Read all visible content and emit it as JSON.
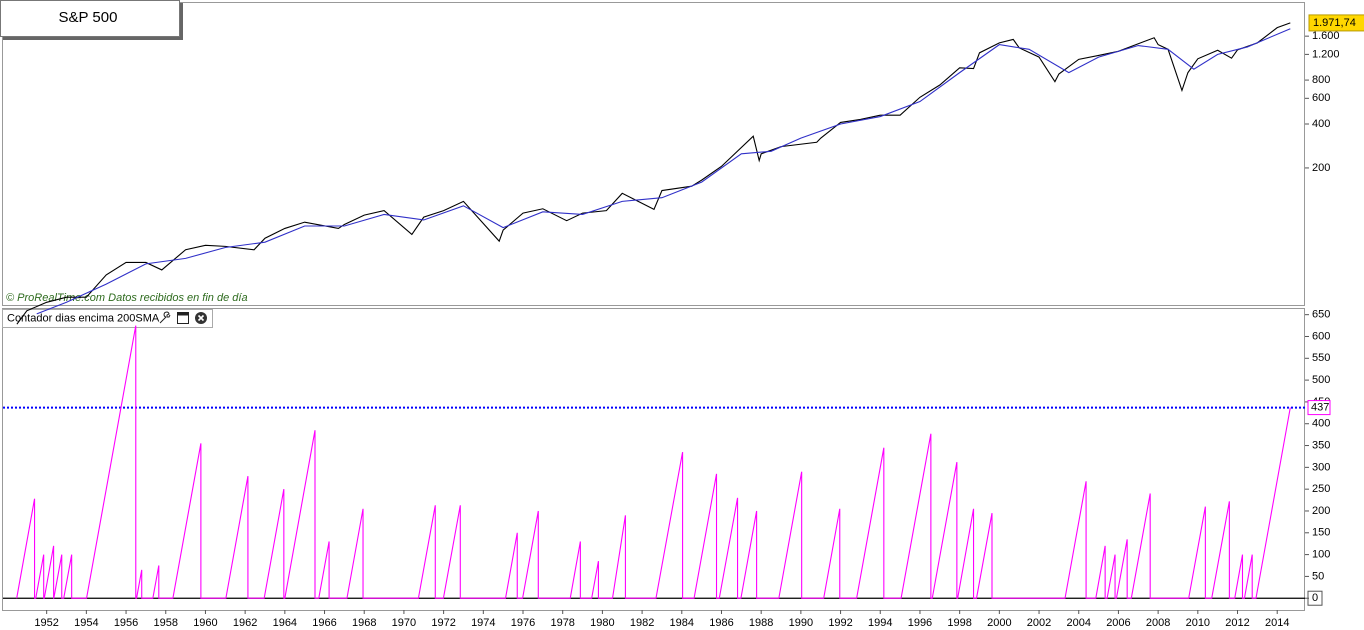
{
  "chart_data": [
    {
      "type": "line",
      "title": "S&P 500",
      "annotation": "© ProRealTime.com  Datos recibidos en fin de día",
      "log_scale": true,
      "xlim": [
        1949.8,
        2015.4
      ],
      "ylim": [
        23,
        2700
      ],
      "yticks": [
        200,
        400,
        600,
        800,
        {
          "value": 1200,
          "label": "1.200"
        },
        {
          "value": 1600,
          "label": "1.600"
        }
      ],
      "last_value": {
        "value": 1971.74,
        "label": "1.971,74"
      },
      "series": [
        {
          "color": "#000000",
          "x": [
            1950.5,
            1951,
            1952,
            1953,
            1954,
            1955,
            1956,
            1957,
            1957.8,
            1959,
            1960,
            1961,
            1962.45,
            1963,
            1964,
            1965,
            1966.7,
            1967,
            1968,
            1969,
            1970.4,
            1971,
            1972,
            1973,
            1974.8,
            1975,
            1976,
            1977,
            1978.2,
            1979,
            1980.2,
            1981,
            1982.6,
            1983,
            1984.5,
            1985,
            1986,
            1987.6,
            1987.9,
            1988,
            1989,
            1990.8,
            1991,
            1992,
            1993,
            1994,
            1995,
            1996,
            1997,
            1998,
            1998.7,
            1999,
            2000,
            2000.7,
            2001,
            2002,
            2002.8,
            2003,
            2004,
            2005,
            2006,
            2007,
            2007.8,
            2008,
            2008.5,
            2009.2,
            2009.5,
            2010,
            2011,
            2011.7,
            2012,
            2013,
            2014,
            2014.66
          ],
          "values": [
            17,
            21,
            24,
            26,
            26,
            37,
            45,
            45,
            40,
            55,
            59,
            58,
            55,
            66,
            77,
            85,
            77,
            82,
            95,
            102,
            70,
            92,
            102,
            118,
            63,
            75,
            98,
            105,
            87,
            98,
            102,
            134,
            104,
            140,
            150,
            165,
            205,
            330,
            225,
            250,
            280,
            300,
            320,
            410,
            430,
            460,
            460,
            610,
            740,
            970,
            960,
            1230,
            1440,
            1520,
            1330,
            1150,
            780,
            880,
            1110,
            1180,
            1260,
            1420,
            1560,
            1400,
            1300,
            680,
            900,
            1120,
            1280,
            1130,
            1290,
            1440,
            1830,
            1971.74
          ]
        },
        {
          "color": "#3030c8",
          "x": [
            1951.5,
            1953,
            1955,
            1957,
            1959,
            1961,
            1963,
            1965,
            1967,
            1969,
            1971,
            1973,
            1975,
            1977,
            1979,
            1981,
            1983,
            1985,
            1987,
            1988.5,
            1990,
            1992,
            1994,
            1996,
            1998,
            2000,
            2001.5,
            2003.5,
            2005,
            2007,
            2008.5,
            2009.8,
            2011,
            2012.5,
            2014.66
          ],
          "values": [
            20,
            24,
            32,
            44,
            48,
            57,
            62,
            80,
            80,
            96,
            88,
            110,
            78,
            100,
            96,
            118,
            125,
            160,
            250,
            260,
            320,
            400,
            450,
            570,
            900,
            1400,
            1300,
            900,
            1150,
            1380,
            1300,
            950,
            1200,
            1350,
            1800
          ]
        }
      ]
    },
    {
      "type": "line",
      "title": "Contador dias encima 200SMA",
      "xlim": [
        1949.8,
        2015.4
      ],
      "ylim": [
        -27,
        663
      ],
      "xticks": [
        1952,
        1954,
        1956,
        1958,
        1960,
        1962,
        1964,
        1966,
        1968,
        1970,
        1972,
        1974,
        1976,
        1978,
        1980,
        1982,
        1984,
        1986,
        1988,
        1990,
        1992,
        1994,
        1996,
        1998,
        2000,
        2002,
        2004,
        2006,
        2008,
        2010,
        2012,
        2014
      ],
      "yticks": [
        0,
        50,
        100,
        150,
        200,
        250,
        300,
        350,
        400,
        450,
        500,
        550,
        600,
        650
      ],
      "hline": {
        "value": 437,
        "color": "#0000ff"
      },
      "series": [
        {
          "color": "#ff00ff",
          "x": [
            1950.49,
            1951.39,
            1951.39,
            1951.45,
            1951.85,
            1951.85,
            1951.88,
            1952.35,
            1952.35,
            1952.36,
            1952.76,
            1952.76,
            1952.86,
            1953.26,
            1953.26,
            1954.01,
            1956.49,
            1956.49,
            1956.53,
            1956.79,
            1956.79,
            1957.35,
            1957.65,
            1957.65,
            1958.36,
            1959.77,
            1959.77,
            1961.03,
            1962.14,
            1962.14,
            1962.96,
            1963.95,
            1963.95,
            1964.0,
            1965.52,
            1965.52,
            1965.71,
            1966.23,
            1966.23,
            1967.13,
            1967.94,
            1967.94,
            1970.73,
            1971.58,
            1971.58,
            1971.99,
            1972.84,
            1972.84,
            1975.12,
            1975.71,
            1975.71,
            1975.98,
            1976.77,
            1976.77,
            1978.38,
            1978.89,
            1978.89,
            1979.46,
            1979.8,
            1979.8,
            1980.51,
            1981.16,
            1981.16,
            1982.7,
            1984.04,
            1984.04,
            1984.62,
            1985.75,
            1985.75,
            1985.89,
            1986.81,
            1986.81,
            1986.98,
            1987.77,
            1987.77,
            1988.89,
            1990.04,
            1990.04,
            1991.15,
            1991.96,
            1991.96,
            1992.81,
            1994.18,
            1994.18,
            1995.05,
            1996.55,
            1996.55,
            1996.62,
            1997.86,
            1997.86,
            1997.9,
            1998.7,
            1998.7,
            1998.85,
            1999.63,
            1999.63,
            2003.31,
            2004.37,
            2004.37,
            2004.86,
            2005.33,
            2005.33,
            2005.43,
            2005.83,
            2005.83,
            2005.9,
            2006.44,
            2006.44,
            2006.65,
            2007.6,
            2007.6,
            2009.54,
            2010.38,
            2010.38,
            2010.7,
            2011.59,
            2011.59,
            2011.86,
            2012.25,
            2012.25,
            2012.35,
            2012.74,
            2012.74,
            2012.93,
            2014.66
          ],
          "values": [
            0,
            228,
            0,
            0,
            100,
            0,
            0,
            120,
            0,
            0,
            100,
            0,
            0,
            100,
            0,
            0,
            625,
            0,
            0,
            65,
            0,
            0,
            75,
            0,
            0,
            355,
            0,
            0,
            280,
            0,
            0,
            250,
            0,
            0,
            385,
            0,
            0,
            130,
            0,
            0,
            205,
            0,
            0,
            213,
            0,
            0,
            213,
            0,
            0,
            150,
            0,
            0,
            200,
            0,
            0,
            130,
            0,
            0,
            85,
            0,
            0,
            190,
            0,
            0,
            335,
            0,
            0,
            285,
            0,
            0,
            230,
            0,
            0,
            200,
            0,
            0,
            290,
            0,
            0,
            205,
            0,
            0,
            345,
            0,
            0,
            377,
            0,
            0,
            312,
            0,
            0,
            205,
            0,
            0,
            195,
            0,
            0,
            268,
            0,
            0,
            120,
            0,
            0,
            100,
            0,
            0,
            135,
            0,
            0,
            240,
            0,
            0,
            210,
            0,
            0,
            222,
            0,
            0,
            100,
            0,
            0,
            100,
            0,
            0,
            437
          ]
        }
      ]
    }
  ]
}
